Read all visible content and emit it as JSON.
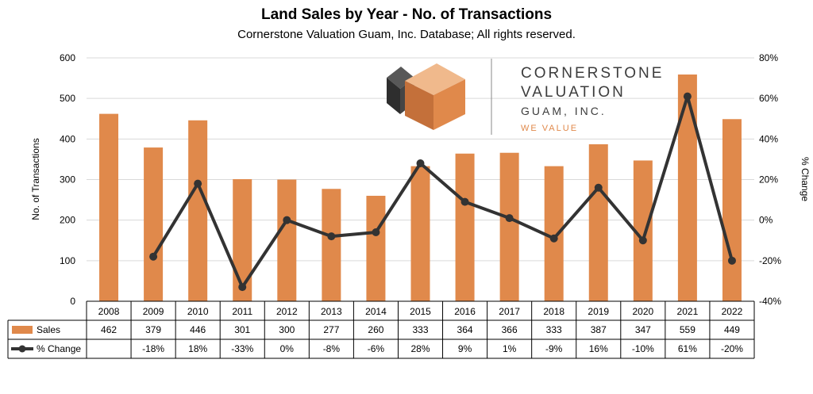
{
  "chart_data": {
    "type": "bar",
    "title": "Land Sales by Year - No. of Transactions",
    "subtitle": "Cornerstone Valuation Guam, Inc. Database; All rights reserved.",
    "ylabel": "No. of Transactions",
    "y2label": "% Change",
    "ylim": [
      0,
      600
    ],
    "y2lim": [
      -40,
      80
    ],
    "yticks": [
      "0",
      "100",
      "200",
      "300",
      "400",
      "500",
      "600"
    ],
    "y2ticks": [
      "-40%",
      "-20%",
      "0%",
      "20%",
      "40%",
      "60%",
      "80%"
    ],
    "categories": [
      "2008",
      "2009",
      "2010",
      "2011",
      "2012",
      "2013",
      "2014",
      "2015",
      "2016",
      "2017",
      "2018",
      "2019",
      "2020",
      "2021",
      "2022"
    ],
    "grid": true,
    "data_table": true,
    "series": [
      {
        "name": "Sales",
        "type": "bar",
        "axis": "left",
        "color": "#E0894B",
        "values": [
          462,
          379,
          446,
          301,
          300,
          277,
          260,
          333,
          364,
          366,
          333,
          387,
          347,
          559,
          449
        ],
        "labels": [
          "462",
          "379",
          "446",
          "301",
          "300",
          "277",
          "260",
          "333",
          "364",
          "366",
          "333",
          "387",
          "347",
          "559",
          "449"
        ]
      },
      {
        "name": "% Change",
        "type": "line",
        "axis": "right",
        "color": "#333333",
        "values": [
          null,
          -18,
          18,
          -33,
          0,
          -8,
          -6,
          28,
          9,
          1,
          -9,
          16,
          -10,
          61,
          -20
        ],
        "labels": [
          "",
          "-18%",
          "18%",
          "-33%",
          "0%",
          "-8%",
          "-6%",
          "28%",
          "9%",
          "1%",
          "-9%",
          "16%",
          "-10%",
          "61%",
          "-20%"
        ]
      }
    ]
  },
  "logo": {
    "line1": "CORNERSTONE",
    "line2": "VALUATION",
    "line3": "GUAM, INC.",
    "tagline": "WE VALUE",
    "colors": {
      "dark": "#3C3C3C",
      "orange": "#E0894B",
      "tagline": "#E0894B"
    }
  }
}
